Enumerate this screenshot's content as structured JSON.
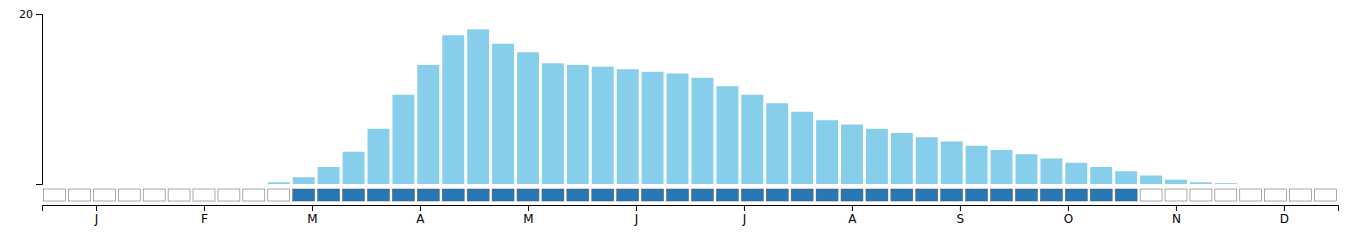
{
  "chart_data": {
    "type": "bar",
    "x": [
      0,
      1,
      2,
      3,
      4,
      5,
      6,
      7,
      8,
      9,
      10,
      11,
      12,
      13,
      14,
      15,
      16,
      17,
      18,
      19,
      20,
      21,
      22,
      23,
      24,
      25,
      26,
      27,
      28,
      29,
      30,
      31,
      32,
      33,
      34,
      35,
      36,
      37,
      38,
      39,
      40,
      41,
      42,
      43,
      44,
      45,
      46,
      47,
      48,
      49,
      50,
      51
    ],
    "values": [
      0,
      0,
      0,
      0,
      0,
      0,
      0,
      0,
      0,
      0.2,
      0.8,
      2.0,
      3.8,
      6.5,
      10.5,
      14.0,
      17.5,
      18.2,
      16.5,
      15.5,
      14.2,
      14.0,
      13.8,
      13.5,
      13.2,
      13.0,
      12.5,
      11.5,
      10.5,
      9.5,
      8.5,
      7.5,
      7.0,
      6.5,
      6.0,
      5.5,
      5.0,
      4.5,
      4.0,
      3.5,
      3.0,
      2.5,
      2.0,
      1.5,
      1.0,
      0.5,
      0.2,
      0.1,
      0,
      0,
      0,
      0
    ],
    "color": "#87CEEB",
    "xlim": [
      -0.5,
      51.5
    ],
    "xticks": [
      {
        "value": 1.6665,
        "label": "J"
      },
      {
        "value": 5.9995,
        "label": "F"
      },
      {
        "value": 10.3325,
        "label": "M"
      },
      {
        "value": 14.6655,
        "label": "A"
      },
      {
        "value": 18.9985,
        "label": "M"
      },
      {
        "value": 23.3315,
        "label": "J"
      },
      {
        "value": 27.6645,
        "label": "J"
      },
      {
        "value": 31.9975,
        "label": "A"
      },
      {
        "value": 36.3305,
        "label": "S"
      },
      {
        "value": 40.6635,
        "label": "O"
      },
      {
        "value": 44.9965,
        "label": "N"
      },
      {
        "value": 49.3295,
        "label": "D"
      }
    ],
    "ylim": [
      0,
      20
    ],
    "yticks": [
      20
    ],
    "active_weeks": [
      false,
      false,
      false,
      false,
      false,
      false,
      false,
      false,
      false,
      false,
      true,
      true,
      true,
      true,
      true,
      true,
      true,
      true,
      true,
      true,
      true,
      true,
      true,
      true,
      true,
      true,
      true,
      true,
      true,
      true,
      true,
      true,
      true,
      true,
      true,
      true,
      true,
      true,
      true,
      true,
      true,
      true,
      true,
      true,
      false,
      false,
      false,
      false,
      false,
      false,
      false,
      false
    ],
    "active_color": "#2878b5",
    "inactive_color": "#ffffff"
  }
}
